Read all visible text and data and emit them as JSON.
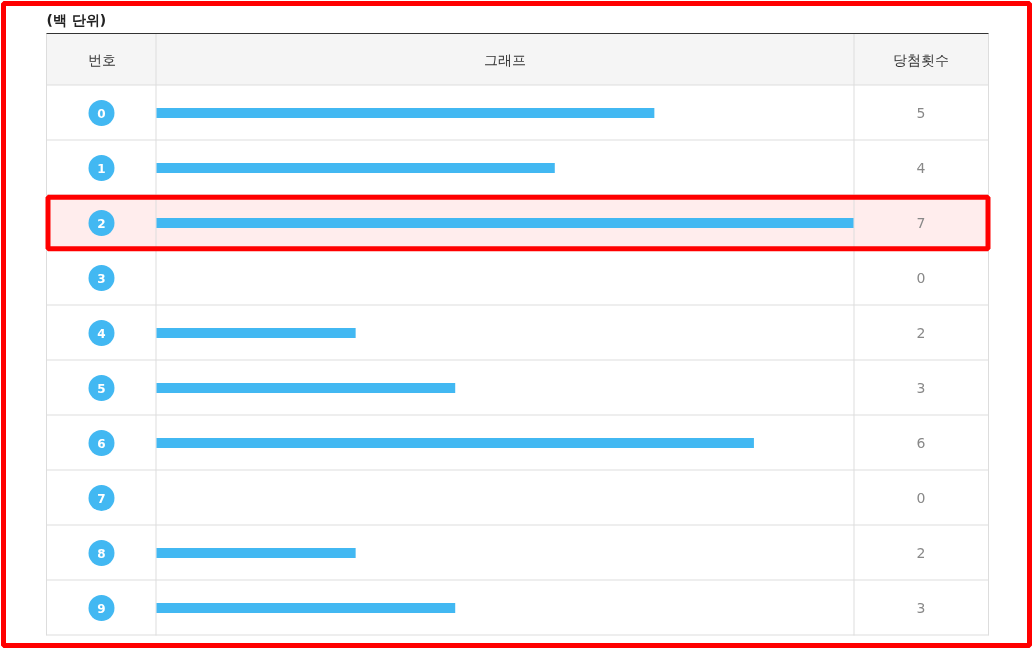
{
  "chart_data": {
    "type": "bar",
    "orientation": "horizontal",
    "title": "(백 단위)",
    "ylabel": "번호",
    "xlabel": "그래프",
    "annotations": [
      "당첨횟수"
    ],
    "categories": [
      "0",
      "1",
      "2",
      "3",
      "4",
      "5",
      "6",
      "7",
      "8",
      "9"
    ],
    "values": [
      5,
      4,
      7,
      0,
      2,
      3,
      6,
      0,
      2,
      3
    ],
    "color": "#42b8f2",
    "data_labels": true,
    "bands": [
      {
        "axis": "y",
        "from": "2",
        "to": "2",
        "color": "#ff0000"
      }
    ]
  }
}
